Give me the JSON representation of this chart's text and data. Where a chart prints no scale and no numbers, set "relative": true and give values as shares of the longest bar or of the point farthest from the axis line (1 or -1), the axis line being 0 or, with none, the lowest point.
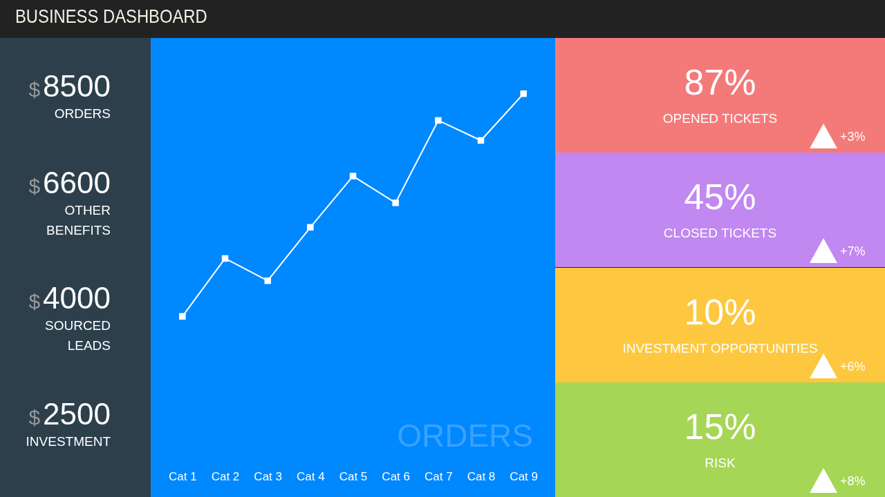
{
  "chart_data": [
    {
      "type": "other",
      "title": "BUSINESS DASHBOARD",
      "categories": [
        "ORDERS",
        "OTHER BENEFITS",
        "SOURCED LEADS",
        "INVESTMENT"
      ],
      "value_labels": [
        "$8500",
        "$6600",
        "$4000",
        "$2500"
      ]
    },
    {
      "type": "line",
      "categories": [
        "Cat 1",
        "Cat 2",
        "Cat 3",
        "Cat 4",
        "Cat 5",
        "Cat 6",
        "Cat 7",
        "Cat 8",
        "Cat 9"
      ],
      "relative": true,
      "series": [
        {
          "color": "#ffffff",
          "values": [
            0,
            0.26,
            0.16,
            0.4,
            0.63,
            0.51,
            0.88,
            0.79,
            1
          ]
        }
      ],
      "marker": "square",
      "annotations": [
        "ORDERS"
      ]
    },
    {
      "type": "other",
      "categories": [
        "OPENED TICKETS",
        "CLOSED TICKETS",
        "INVESTMENT OPPORTUNITIES",
        "RISK"
      ],
      "value_labels": [
        "87%",
        "45%",
        "10%",
        "15%"
      ],
      "colors": [
        "#f47a7a",
        "#c088f0",
        "#fdc840",
        "#a6d655"
      ],
      "annotations": [
        "+3%",
        "+7%",
        "+6%",
        "+8%"
      ]
    }
  ]
}
